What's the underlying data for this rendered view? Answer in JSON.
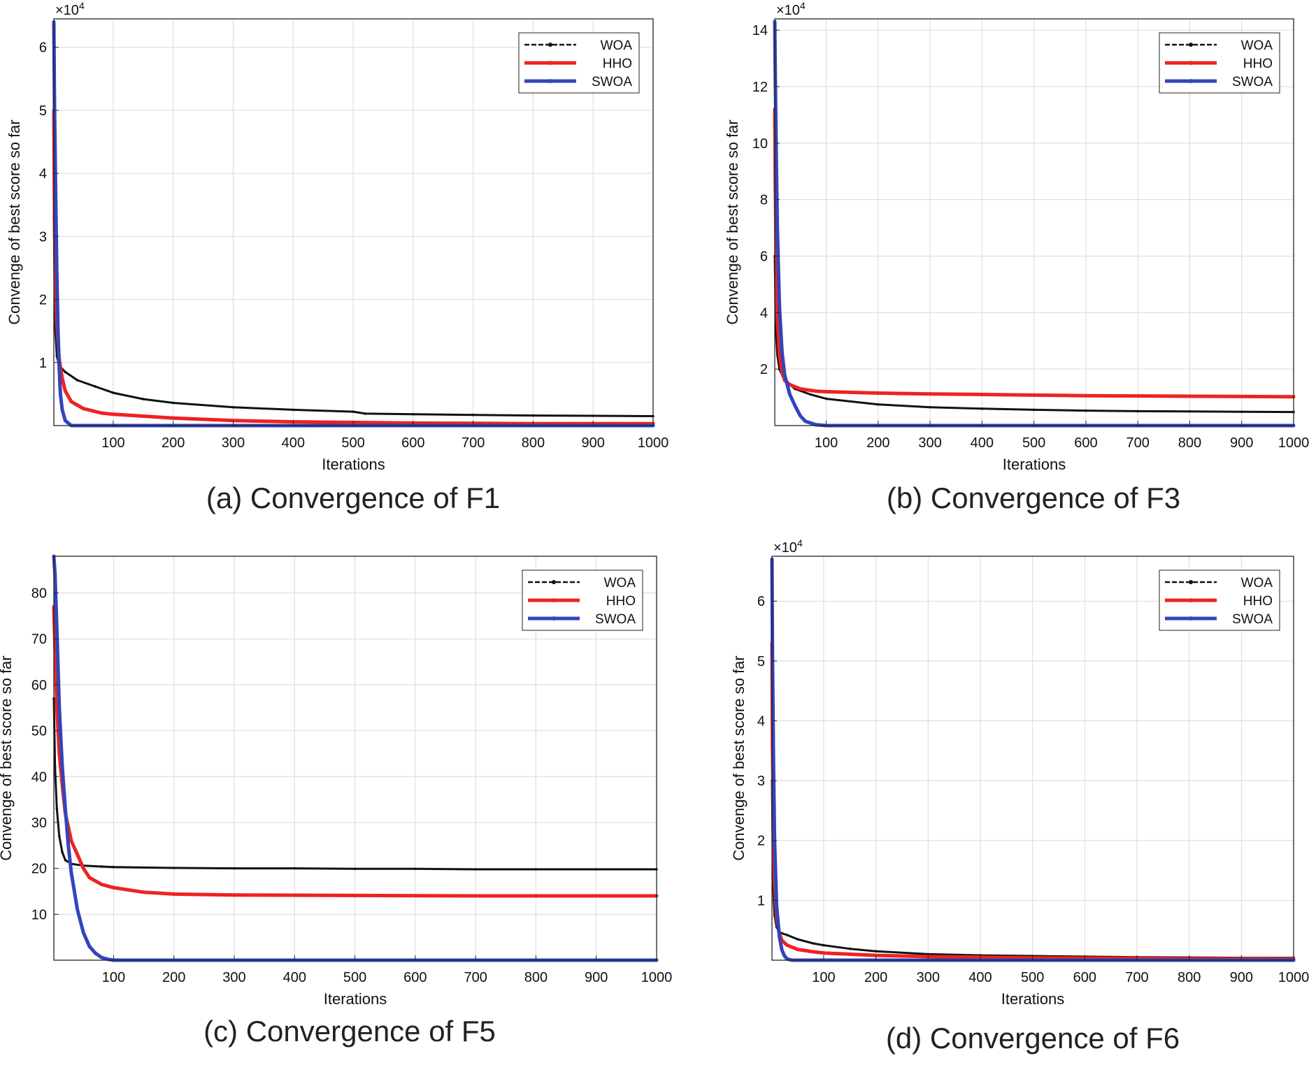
{
  "colors": {
    "WOA": "#111111",
    "HHO": "#ee2222",
    "SWOA": "#3344bb"
  },
  "chart_data": [
    {
      "type": "line",
      "caption": "(a) Convergence of F1",
      "xlabel": "Iterations",
      "ylabel": "Convenge of best score so far",
      "multiplier": "×10",
      "multiplier_exp": "4",
      "xlim": [
        1,
        1000
      ],
      "ylim": [
        0,
        6.45
      ],
      "xticks": [
        100,
        200,
        300,
        400,
        500,
        600,
        700,
        800,
        900,
        1000
      ],
      "yticks": [
        1,
        2,
        3,
        4,
        5,
        6
      ],
      "legend_position": "top-right",
      "series": [
        {
          "name": "WOA",
          "x": [
            1,
            3,
            6,
            10,
            20,
            40,
            70,
            100,
            150,
            200,
            300,
            400,
            500,
            520,
            600,
            700,
            800,
            900,
            1000
          ],
          "y": [
            3.3,
            1.6,
            1.1,
            0.95,
            0.85,
            0.72,
            0.62,
            0.52,
            0.42,
            0.36,
            0.29,
            0.25,
            0.22,
            0.19,
            0.18,
            0.17,
            0.16,
            0.155,
            0.15
          ]
        },
        {
          "name": "HHO",
          "x": [
            1,
            2,
            4,
            6,
            10,
            15,
            20,
            30,
            50,
            80,
            100,
            150,
            200,
            300,
            400,
            500,
            600,
            700,
            800,
            1000
          ],
          "y": [
            5.0,
            3.4,
            2.2,
            1.6,
            1.05,
            0.75,
            0.55,
            0.38,
            0.27,
            0.2,
            0.18,
            0.15,
            0.12,
            0.08,
            0.06,
            0.05,
            0.04,
            0.035,
            0.03,
            0.03
          ]
        },
        {
          "name": "SWOA",
          "x": [
            1,
            2,
            4,
            6,
            8,
            10,
            12,
            15,
            20,
            30,
            1000
          ],
          "y": [
            6.4,
            5.1,
            3.7,
            2.4,
            1.5,
            0.9,
            0.5,
            0.25,
            0.08,
            0.0,
            0.0
          ]
        }
      ]
    },
    {
      "type": "line",
      "caption": "(b) Convergence of F3",
      "xlabel": "Iterations",
      "ylabel": "Convenge of best score so far",
      "multiplier": "×10",
      "multiplier_exp": "4",
      "xlim": [
        1,
        1000
      ],
      "ylim": [
        0,
        14.4
      ],
      "xticks": [
        100,
        200,
        300,
        400,
        500,
        600,
        700,
        800,
        900,
        1000
      ],
      "yticks": [
        2,
        4,
        6,
        8,
        10,
        12,
        14
      ],
      "legend_position": "top-right",
      "series": [
        {
          "name": "WOA",
          "x": [
            1,
            3,
            6,
            10,
            20,
            40,
            70,
            100,
            200,
            300,
            400,
            500,
            600,
            700,
            800,
            900,
            1000
          ],
          "y": [
            6.0,
            3.4,
            2.5,
            2.0,
            1.6,
            1.3,
            1.1,
            0.95,
            0.75,
            0.65,
            0.6,
            0.56,
            0.53,
            0.51,
            0.5,
            0.49,
            0.48
          ]
        },
        {
          "name": "HHO",
          "x": [
            1,
            2,
            4,
            6,
            10,
            15,
            20,
            30,
            50,
            80,
            100,
            200,
            300,
            400,
            500,
            600,
            700,
            800,
            900,
            1000
          ],
          "y": [
            11.2,
            8.7,
            5.5,
            3.8,
            2.5,
            1.9,
            1.6,
            1.45,
            1.3,
            1.22,
            1.2,
            1.15,
            1.12,
            1.1,
            1.08,
            1.06,
            1.05,
            1.04,
            1.03,
            1.02
          ]
        },
        {
          "name": "SWOA",
          "x": [
            1,
            2,
            4,
            6,
            10,
            15,
            20,
            30,
            40,
            50,
            60,
            80,
            100,
            1000
          ],
          "y": [
            14.3,
            12.5,
            9.5,
            7.0,
            4.2,
            2.6,
            1.8,
            1.1,
            0.7,
            0.35,
            0.15,
            0.03,
            0.0,
            0.0
          ]
        }
      ]
    },
    {
      "type": "line",
      "caption": "(c) Convergence of F5",
      "xlabel": "Iterations",
      "ylabel": "Convenge of best score so far",
      "multiplier": "",
      "multiplier_exp": "",
      "xlim": [
        1,
        1000
      ],
      "ylim": [
        0,
        88
      ],
      "xticks": [
        100,
        200,
        300,
        400,
        500,
        600,
        700,
        800,
        900,
        1000
      ],
      "yticks": [
        10,
        20,
        30,
        40,
        50,
        60,
        70,
        80
      ],
      "legend_position": "top-right",
      "series": [
        {
          "name": "WOA",
          "x": [
            1,
            3,
            6,
            10,
            15,
            20,
            30,
            50,
            80,
            100,
            200,
            300,
            400,
            500,
            600,
            700,
            800,
            900,
            1000
          ],
          "y": [
            57,
            42,
            33,
            27,
            23.5,
            21.8,
            21.0,
            20.6,
            20.4,
            20.3,
            20.1,
            20.0,
            20.0,
            19.9,
            19.9,
            19.8,
            19.8,
            19.8,
            19.8
          ]
        },
        {
          "name": "HHO",
          "x": [
            1,
            2,
            4,
            6,
            10,
            15,
            20,
            30,
            40,
            50,
            60,
            80,
            100,
            150,
            200,
            300,
            500,
            700,
            1000
          ],
          "y": [
            77,
            72,
            64,
            55,
            45,
            38,
            32,
            26,
            23,
            20,
            18,
            16.5,
            15.8,
            14.8,
            14.4,
            14.2,
            14.1,
            14.0,
            14.0
          ]
        },
        {
          "name": "SWOA",
          "x": [
            1,
            3,
            5,
            8,
            10,
            15,
            20,
            25,
            30,
            40,
            50,
            60,
            70,
            80,
            90,
            100,
            1000
          ],
          "y": [
            88,
            84,
            76,
            64,
            55,
            42,
            33,
            25,
            19,
            11,
            6,
            3,
            1.5,
            0.6,
            0.2,
            0.0,
            0.0
          ]
        }
      ]
    },
    {
      "type": "line",
      "caption": "(d) Convergence of F6",
      "xlabel": "Iterations",
      "ylabel": "Convenge of best score so far",
      "multiplier": "×10",
      "multiplier_exp": "4",
      "xlim": [
        1,
        1000
      ],
      "ylim": [
        0,
        6.75
      ],
      "xticks": [
        100,
        200,
        300,
        400,
        500,
        600,
        700,
        800,
        900,
        1000
      ],
      "yticks": [
        1,
        2,
        3,
        4,
        5,
        6
      ],
      "legend_position": "top-right",
      "series": [
        {
          "name": "WOA",
          "x": [
            1,
            3,
            6,
            10,
            15,
            20,
            30,
            50,
            80,
            100,
            150,
            200,
            300,
            400,
            500,
            600,
            700,
            800,
            900,
            1000
          ],
          "y": [
            3.0,
            1.3,
            0.75,
            0.55,
            0.47,
            0.45,
            0.42,
            0.35,
            0.28,
            0.25,
            0.19,
            0.15,
            0.1,
            0.08,
            0.07,
            0.06,
            0.05,
            0.045,
            0.04,
            0.04
          ]
        },
        {
          "name": "HHO",
          "x": [
            1,
            2,
            4,
            6,
            10,
            15,
            20,
            30,
            50,
            80,
            100,
            200,
            300,
            400,
            500,
            600,
            700,
            800,
            1000
          ],
          "y": [
            5.3,
            3.6,
            2.2,
            1.3,
            0.7,
            0.45,
            0.33,
            0.25,
            0.18,
            0.14,
            0.12,
            0.08,
            0.06,
            0.05,
            0.04,
            0.035,
            0.03,
            0.025,
            0.02
          ]
        },
        {
          "name": "SWOA",
          "x": [
            1,
            2,
            4,
            6,
            10,
            15,
            20,
            25,
            30,
            40,
            1000
          ],
          "y": [
            6.7,
            5.2,
            3.3,
            2.0,
            0.9,
            0.4,
            0.17,
            0.07,
            0.02,
            0.0,
            0.0
          ]
        }
      ]
    }
  ]
}
